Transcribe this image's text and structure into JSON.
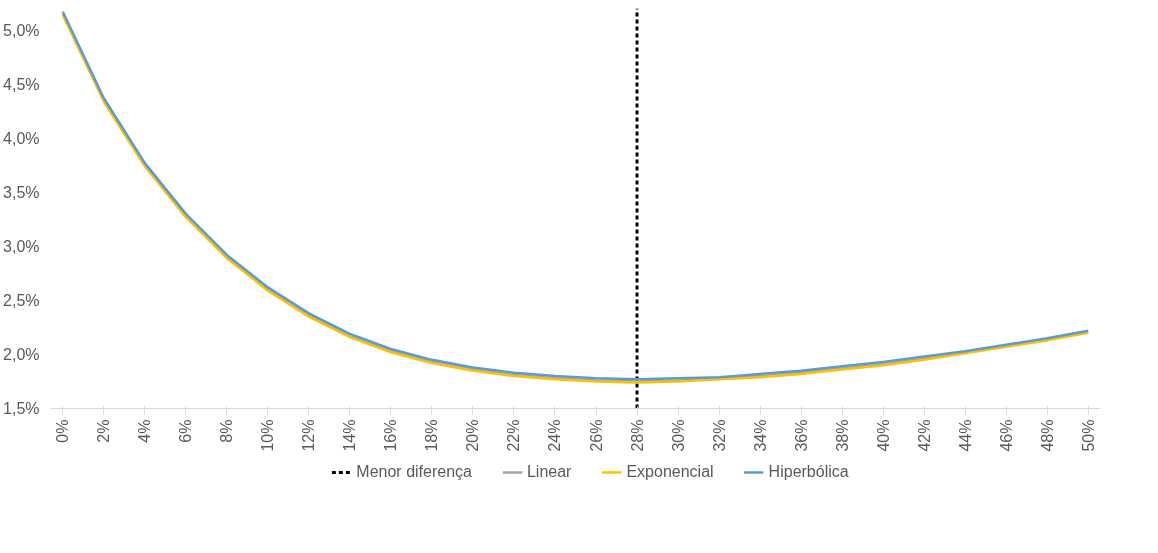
{
  "chart_data": {
    "type": "line",
    "x": [
      0,
      2,
      4,
      6,
      8,
      10,
      12,
      14,
      16,
      18,
      20,
      22,
      24,
      26,
      28,
      30,
      32,
      34,
      36,
      38,
      40,
      42,
      44,
      46,
      48,
      50
    ],
    "series": [
      {
        "name": "Linear",
        "color": "#a5a5a5",
        "values": [
          5.15,
          4.35,
          3.75,
          3.28,
          2.9,
          2.6,
          2.36,
          2.17,
          2.03,
          1.93,
          1.86,
          1.81,
          1.78,
          1.76,
          1.75,
          1.76,
          1.78,
          1.8,
          1.83,
          1.87,
          1.91,
          1.96,
          2.02,
          2.08,
          2.14,
          2.21
        ]
      },
      {
        "name": "Exponencial",
        "color": "#ffc000",
        "values": [
          5.14,
          4.34,
          3.74,
          3.27,
          2.89,
          2.59,
          2.35,
          2.16,
          2.02,
          1.92,
          1.85,
          1.8,
          1.77,
          1.75,
          1.74,
          1.75,
          1.77,
          1.79,
          1.82,
          1.86,
          1.9,
          1.95,
          2.01,
          2.07,
          2.13,
          2.2
        ]
      },
      {
        "name": "Hiperbólica",
        "color": "#5b9bd5",
        "values": [
          5.17,
          4.37,
          3.77,
          3.3,
          2.92,
          2.62,
          2.38,
          2.19,
          2.05,
          1.95,
          1.88,
          1.83,
          1.8,
          1.78,
          1.77,
          1.78,
          1.79,
          1.82,
          1.85,
          1.89,
          1.93,
          1.98,
          2.03,
          2.09,
          2.15,
          2.22
        ]
      }
    ],
    "ref_lines": [
      {
        "axis": "x",
        "value": 28,
        "label": "Menor diferença",
        "color": "#000000",
        "line_style": "dashed"
      }
    ],
    "xlim": [
      -0.6,
      50.6
    ],
    "xticks": [
      {
        "value": 0,
        "label": "0%"
      },
      {
        "value": 2,
        "label": "2%"
      },
      {
        "value": 4,
        "label": "4%"
      },
      {
        "value": 6,
        "label": "6%"
      },
      {
        "value": 8,
        "label": "8%"
      },
      {
        "value": 10,
        "label": "10%"
      },
      {
        "value": 12,
        "label": "12%"
      },
      {
        "value": 14,
        "label": "14%"
      },
      {
        "value": 16,
        "label": "16%"
      },
      {
        "value": 18,
        "label": "18%"
      },
      {
        "value": 20,
        "label": "20%"
      },
      {
        "value": 22,
        "label": "22%"
      },
      {
        "value": 24,
        "label": "24%"
      },
      {
        "value": 26,
        "label": "26%"
      },
      {
        "value": 28,
        "label": "28%"
      },
      {
        "value": 30,
        "label": "30%"
      },
      {
        "value": 32,
        "label": "32%"
      },
      {
        "value": 34,
        "label": "34%"
      },
      {
        "value": 36,
        "label": "36%"
      },
      {
        "value": 38,
        "label": "38%"
      },
      {
        "value": 40,
        "label": "40%"
      },
      {
        "value": 42,
        "label": "42%"
      },
      {
        "value": 44,
        "label": "44%"
      },
      {
        "value": 46,
        "label": "46%"
      },
      {
        "value": 48,
        "label": "48%"
      },
      {
        "value": 50,
        "label": "50%"
      }
    ],
    "ylim": [
      1.5,
      5.2
    ],
    "yticks": [
      {
        "value": 1.5,
        "label": "1,5%"
      },
      {
        "value": 2.0,
        "label": "2,0%"
      },
      {
        "value": 2.5,
        "label": "2,5%"
      },
      {
        "value": 3.0,
        "label": "3,0%"
      },
      {
        "value": 3.5,
        "label": "3,5%"
      },
      {
        "value": 4.0,
        "label": "4,0%"
      },
      {
        "value": 4.5,
        "label": "4,5%"
      },
      {
        "value": 5.0,
        "label": "5,0%"
      }
    ],
    "legend": "bottom",
    "grid": false,
    "marker": "none",
    "line_style": "solid"
  }
}
